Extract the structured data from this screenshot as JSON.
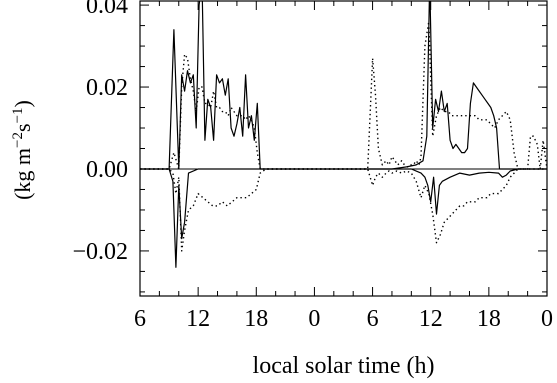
{
  "chart_data": {
    "type": "line",
    "title": "",
    "xlabel": "local solar time (h)",
    "ylabel_parts": {
      "open": "(kg m",
      "exp1": "−2",
      "mid": "s",
      "exp2": "−1",
      "close": ")"
    },
    "xlim": [
      6,
      48
    ],
    "ylim": [
      -0.031,
      0.041
    ],
    "xticks": [
      6,
      12,
      18,
      24,
      30,
      36,
      42,
      48
    ],
    "xticklabels": [
      "6",
      "12",
      "18",
      "0",
      "6",
      "12",
      "18",
      "0"
    ],
    "yticks": [
      -0.02,
      0.0,
      0.02,
      0.04
    ],
    "yticklabels": [
      "−0.02",
      "0.00",
      "0.02",
      "0.04"
    ],
    "grid": false,
    "legend": "none",
    "series": [
      {
        "style": "solid",
        "x": [
          6,
          7,
          8,
          8.5,
          9,
          9.5,
          10,
          10.3,
          10.6,
          10.9,
          11.2,
          11.5,
          11.8,
          12.1,
          12.4,
          12.7,
          13,
          13.3,
          13.6,
          13.9,
          14.2,
          14.5,
          14.8,
          15.1,
          15.4,
          15.7,
          16,
          16.3,
          16.6,
          16.9,
          17.2,
          17.5,
          17.8,
          18.1,
          18.4,
          19,
          21,
          24,
          27,
          30,
          32,
          33.5,
          34.5,
          35.2,
          35.6,
          35.9,
          36.2,
          36.5,
          36.8,
          37.1,
          37.4,
          37.7,
          38,
          38.3,
          38.6,
          38.9,
          39.2,
          39.5,
          39.8,
          40.1,
          40.4,
          40.7,
          41,
          41.3,
          41.6,
          41.9,
          42.2,
          42.5,
          42.8,
          43.1,
          43.4,
          43.7,
          44,
          44.3,
          44.6,
          45,
          46,
          47,
          48
        ],
        "y": [
          0,
          0,
          0,
          0,
          0,
          0.034,
          0,
          0.023,
          0.019,
          0.024,
          0.021,
          0.023,
          0.01,
          0.04,
          0.046,
          0.007,
          0.017,
          0.015,
          0.007,
          0.023,
          0.021,
          0.022,
          0.018,
          0.022,
          0.01,
          0.008,
          0.011,
          0.015,
          0.008,
          0.023,
          0.01,
          0.013,
          0.007,
          0.016,
          0,
          0,
          0,
          0,
          0,
          0,
          0,
          0.0005,
          0.001,
          0.002,
          0.008,
          0.046,
          0.01,
          0.017,
          0.014,
          0.019,
          0.014,
          0.016,
          0.007,
          0.005,
          0.006,
          0.005,
          0.004,
          0.004,
          0.005,
          0.016,
          0.021,
          0.02,
          0.019,
          0.018,
          0.017,
          0.016,
          0.015,
          0.013,
          0.01,
          0,
          0,
          0,
          0,
          0,
          0,
          0,
          0,
          0,
          0
        ]
      },
      {
        "style": "solid",
        "x": [
          6,
          8,
          9,
          9.4,
          9.7,
          10,
          10.3,
          10.6,
          11,
          12,
          14,
          16,
          17,
          18,
          19,
          21,
          24,
          27,
          30,
          33,
          34,
          35,
          35.4,
          35.7,
          36,
          36.3,
          36.6,
          36.9,
          37.2,
          38,
          39,
          40,
          41,
          42,
          43,
          43.4,
          43.8,
          44.2,
          45,
          48
        ],
        "y": [
          0,
          0,
          0,
          -0.003,
          -0.024,
          -0.004,
          -0.017,
          -0.013,
          -0.001,
          0,
          0,
          0,
          0,
          0,
          0,
          0,
          0,
          0,
          0,
          0,
          0,
          -0.001,
          -0.002,
          -0.004,
          -0.008,
          -0.002,
          -0.011,
          -0.004,
          -0.003,
          -0.002,
          -0.001,
          -0.0015,
          -0.001,
          -0.0008,
          -0.001,
          -0.002,
          -0.0015,
          -0.0005,
          0,
          0
        ]
      },
      {
        "style": "dotted",
        "x": [
          6,
          7,
          8,
          8.5,
          9,
          9.5,
          10,
          10.3,
          10.6,
          10.9,
          11.2,
          11.5,
          11.8,
          12.1,
          12.4,
          12.7,
          13,
          13.3,
          13.6,
          13.9,
          14.2,
          14.5,
          14.8,
          15.1,
          15.4,
          15.7,
          16,
          16.3,
          16.6,
          16.9,
          17.2,
          17.5,
          17.8,
          18.1,
          18.4,
          19,
          21,
          24,
          27,
          29.5,
          30,
          30.3,
          30.6,
          31,
          31.4,
          31.7,
          32,
          32.3,
          32.6,
          33,
          33.3,
          33.6,
          33.9,
          34.2,
          34.5,
          34.8,
          35,
          35.4,
          35.8,
          36.2,
          36.6,
          37,
          37.4,
          37.8,
          38.2,
          38.6,
          39,
          39.4,
          39.8,
          40.2,
          40.6,
          41,
          41.4,
          41.8,
          42.2,
          42.6,
          43,
          43.4,
          43.8,
          44.2,
          44.6,
          45,
          45.5,
          46,
          46.3,
          46.6,
          47,
          47.3,
          47.6,
          48
        ],
        "y": [
          0,
          0,
          0,
          0,
          0,
          0.004,
          0,
          0.02,
          0.028,
          0.027,
          0.022,
          0.019,
          0.014,
          0.02,
          0.02,
          0.016,
          0.016,
          0.015,
          0.019,
          0.015,
          0.015,
          0.014,
          0.014,
          0.013,
          0.015,
          0.014,
          0.013,
          0.013,
          0.013,
          0.012,
          0.013,
          0.012,
          0.01,
          0.004,
          0,
          0,
          0,
          0,
          0,
          0,
          0.027,
          0.018,
          0.005,
          0.001,
          0.002,
          0.001,
          0.003,
          0.002,
          0.001,
          0.002,
          0.001,
          0.0005,
          0.001,
          0.001,
          0.002,
          0.001,
          0.003,
          0.03,
          0.036,
          0.008,
          0.013,
          0.015,
          0.014,
          0.014,
          0.013,
          0.013,
          0.013,
          0.013,
          0.013,
          0.013,
          0.013,
          0.012,
          0.012,
          0.012,
          0.011,
          0.01,
          0.012,
          0.013,
          0.014,
          0.012,
          0.004,
          0,
          0,
          0,
          0.008,
          0.008,
          0.006,
          0,
          0.007,
          0
        ]
      },
      {
        "style": "dotted",
        "x": [
          6,
          8,
          9,
          9.4,
          9.7,
          10,
          10.3,
          10.6,
          11,
          11.5,
          12,
          12.5,
          13,
          13.5,
          14,
          14.5,
          15,
          15.5,
          16,
          16.5,
          17,
          17.5,
          18,
          18.4,
          19,
          21,
          24,
          27,
          29.5,
          30,
          30.3,
          30.6,
          31,
          31.4,
          31.7,
          32,
          32.5,
          33,
          33.5,
          34,
          34.5,
          35,
          35.4,
          35.8,
          36.2,
          36.6,
          37,
          37.4,
          37.8,
          38.2,
          38.6,
          39,
          39.4,
          39.8,
          40.2,
          40.6,
          41,
          41.4,
          41.8,
          42.2,
          42.6,
          43,
          43.4,
          43.8,
          44.2,
          44.6,
          45,
          46,
          48
        ],
        "y": [
          0,
          0,
          0,
          -0.001,
          -0.006,
          -0.002,
          -0.02,
          -0.015,
          -0.01,
          -0.009,
          -0.006,
          -0.007,
          -0.008,
          -0.009,
          -0.009,
          -0.008,
          -0.009,
          -0.008,
          -0.007,
          -0.007,
          -0.007,
          -0.006,
          -0.005,
          -0.001,
          0,
          0,
          0,
          0,
          0,
          -0.004,
          -0.002,
          -0.001,
          -0.002,
          -0.001,
          -0.0005,
          -0.001,
          -0.0005,
          -0.001,
          -0.0005,
          -0.001,
          -0.003,
          -0.007,
          -0.004,
          -0.006,
          -0.011,
          -0.018,
          -0.016,
          -0.013,
          -0.012,
          -0.011,
          -0.01,
          -0.009,
          -0.009,
          -0.008,
          -0.008,
          -0.008,
          -0.007,
          -0.007,
          -0.007,
          -0.006,
          -0.006,
          -0.006,
          -0.005,
          -0.004,
          -0.002,
          -0.001,
          0,
          0,
          0
        ]
      }
    ]
  }
}
